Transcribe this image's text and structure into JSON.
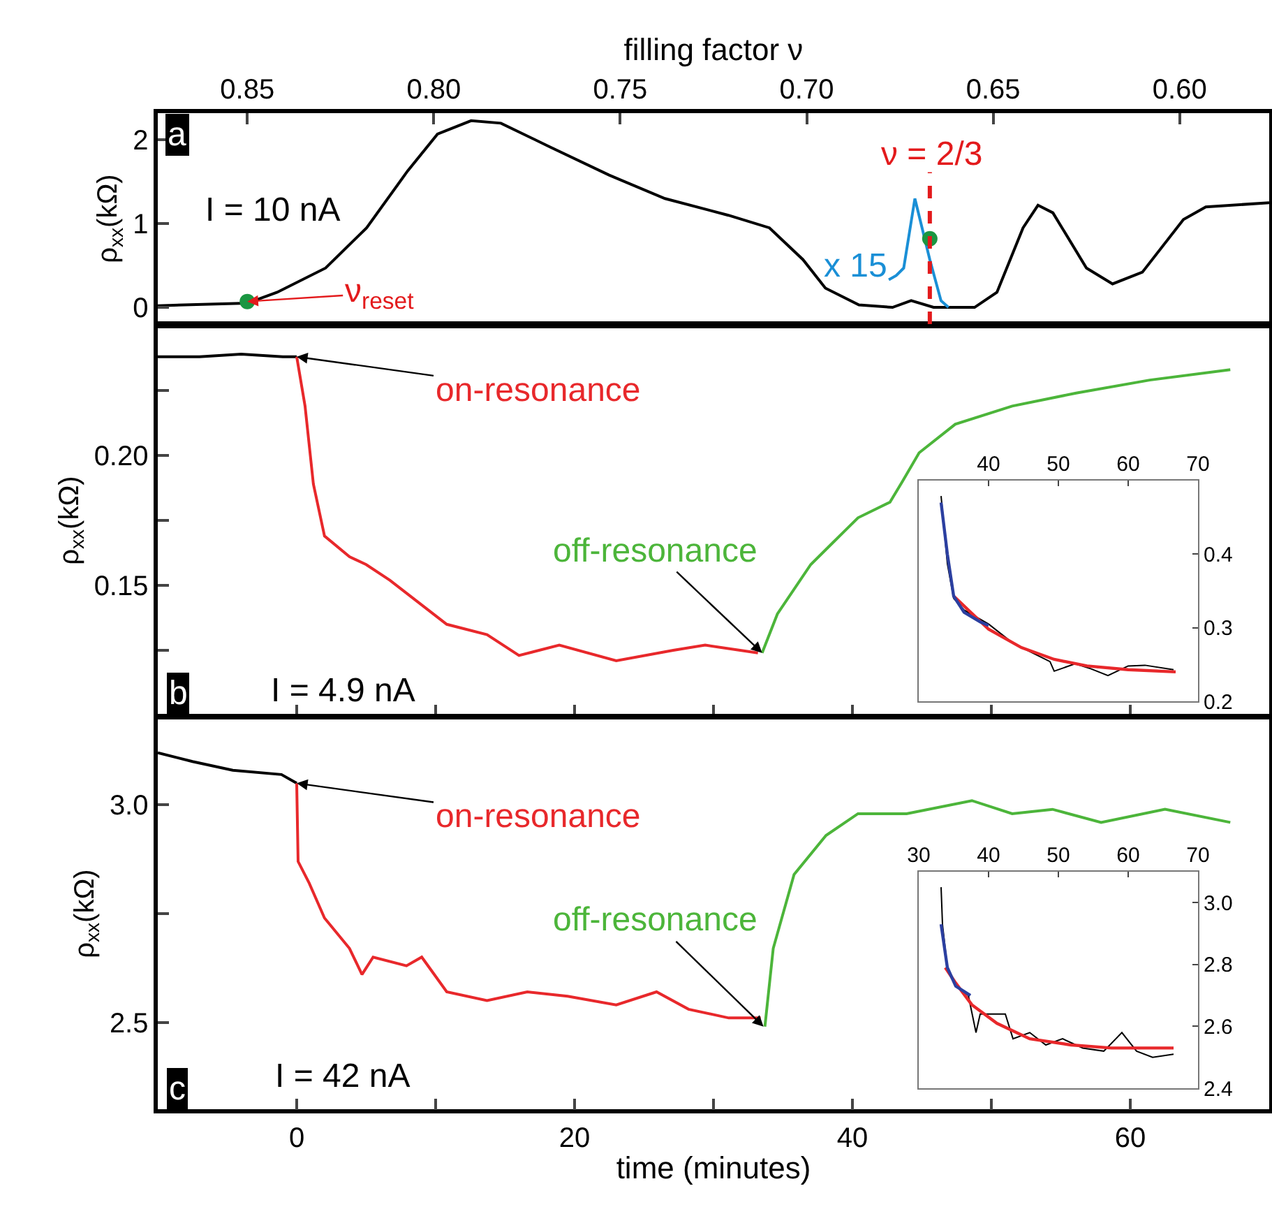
{
  "chart_data": [
    {
      "type": "line",
      "xlabel": "filling factor ν",
      "xlim": [
        0.874,
        0.576
      ],
      "xticks": [
        {
          "value": 0.85,
          "label": "0.85"
        },
        {
          "value": 0.8,
          "label": "0.80"
        },
        {
          "value": 0.75,
          "label": "0.75"
        },
        {
          "value": 0.7,
          "label": "0.70"
        },
        {
          "value": 0.65,
          "label": "0.65"
        },
        {
          "value": 0.6,
          "label": "0.60"
        }
      ],
      "ylabel": "ρ$_{xx}$(kΩ)",
      "ylim": [
        -0.2,
        2.32
      ],
      "yticks": [
        0,
        1,
        2
      ],
      "series": [
        {
          "color": "#000000",
          "x": [
            0.874,
            0.85,
            0.842,
            0.829,
            0.818,
            0.807,
            0.799,
            0.79,
            0.782,
            0.769,
            0.753,
            0.738,
            0.721,
            0.71,
            0.701,
            0.695,
            0.686,
            0.677,
            0.672,
            0.666,
            0.655,
            0.649,
            0.642,
            0.638,
            0.634,
            0.625,
            0.618,
            0.61,
            0.599,
            0.593,
            0.576
          ],
          "values": [
            0.02,
            0.05,
            0.18,
            0.47,
            0.95,
            1.63,
            2.07,
            2.23,
            2.2,
            1.92,
            1.58,
            1.3,
            1.1,
            0.95,
            0.57,
            0.23,
            0.03,
            0.0,
            0.08,
            0.0,
            0.0,
            0.18,
            0.95,
            1.22,
            1.13,
            0.47,
            0.28,
            0.42,
            1.05,
            1.2,
            1.25
          ]
        },
        {
          "color": "#1a8fd6",
          "x": [
            0.678,
            0.676,
            0.674,
            0.671,
            0.667,
            0.664,
            0.662
          ],
          "values": [
            0.33,
            0.38,
            0.47,
            1.3,
            0.57,
            0.08,
            0.0
          ]
        },
        {
          "type": "scatter",
          "marker": "circle",
          "color": "#1a9641",
          "x": [
            0.85,
            0.667
          ],
          "values": [
            0.07,
            0.82
          ]
        }
      ],
      "ref_lines": [
        {
          "axis": "x",
          "value": 0.667,
          "color": "#e31a1c",
          "line_style": "dashed"
        }
      ],
      "annotations": [
        "a",
        "I = 10 nA",
        "x 15",
        {
          "text": "ν$_{reset}$",
          "x": 0.85,
          "y": 0.07
        },
        "ν = 2/3"
      ]
    },
    {
      "type": "line",
      "xlim": [
        -10,
        70
      ],
      "xticks": [
        0,
        {
          "value": 10,
          "label": null
        },
        20,
        {
          "value": 30,
          "label": null
        },
        40,
        {
          "value": 50,
          "label": null
        },
        60
      ],
      "ylabel": "ρ$_{xx}$(kΩ)",
      "ylim": [
        0.1,
        0.25
      ],
      "yticks": [
        {
          "value": 0.125,
          "label": null
        },
        {
          "value": 0.15,
          "label": "0.15"
        },
        {
          "value": 0.175,
          "label": null
        },
        {
          "value": 0.2,
          "label": "0.20"
        },
        {
          "value": 0.225,
          "label": null
        }
      ],
      "tick_labels": "y",
      "series": [
        {
          "color": "#000000",
          "x": [
            -10,
            -7,
            -4,
            -1,
            0
          ],
          "values": [
            0.238,
            0.238,
            0.239,
            0.238,
            0.238
          ]
        },
        {
          "color": "#e8282b",
          "x": [
            0,
            0.6,
            1.2,
            2.0,
            3.8,
            5.0,
            6.7,
            10.8,
            13.7,
            16,
            18.9,
            23,
            27.1,
            29.4,
            33.2
          ],
          "values": [
            0.238,
            0.219,
            0.189,
            0.169,
            0.161,
            0.158,
            0.152,
            0.135,
            0.131,
            0.123,
            0.127,
            0.121,
            0.125,
            0.127,
            0.124
          ]
        },
        {
          "color": "#4cb53a",
          "x": [
            33.5,
            34.6,
            37,
            38.7,
            40.4,
            42.7,
            43.6,
            44.8,
            47.4,
            51.5,
            56.1,
            61.4,
            67.2
          ],
          "values": [
            0.124,
            0.139,
            0.158,
            0.167,
            0.176,
            0.182,
            0.19,
            0.201,
            0.212,
            0.219,
            0.224,
            0.229,
            0.233
          ]
        }
      ],
      "annotations": [
        "b",
        "I = 4.9 nA",
        {
          "text": "on-resonance",
          "x": 0,
          "y": 0.238
        },
        {
          "text": "off-resonance",
          "x": 33.5,
          "y": 0.124
        }
      ]
    },
    {
      "type": "line",
      "xlabel": "time (minutes)",
      "xlim": [
        -10,
        70
      ],
      "xticks": [
        0,
        {
          "value": 10,
          "label": null
        },
        20,
        {
          "value": 30,
          "label": null
        },
        40,
        {
          "value": 50,
          "label": null
        },
        60
      ],
      "ylabel": "ρ$_{xx}$(kΩ)",
      "ylim": [
        2.3,
        3.2
      ],
      "yticks": [
        {
          "value": 2.5,
          "label": "2.5"
        },
        {
          "value": 2.75,
          "label": null
        },
        {
          "value": 3.0,
          "label": "3.0"
        }
      ],
      "series": [
        {
          "color": "#000000",
          "x": [
            -10,
            -7.5,
            -4.6,
            -1.1,
            0
          ],
          "values": [
            3.12,
            3.1,
            3.08,
            3.07,
            3.05
          ]
        },
        {
          "color": "#e8282b",
          "x": [
            0,
            0.1,
            0.9,
            2,
            3.8,
            4.7,
            5.5,
            7.9,
            9,
            10.8,
            13.7,
            16.6,
            19.5,
            23,
            25.9,
            28.2,
            31.1,
            33.4
          ],
          "values": [
            3.05,
            2.87,
            2.82,
            2.74,
            2.67,
            2.61,
            2.65,
            2.63,
            2.65,
            2.57,
            2.55,
            2.57,
            2.56,
            2.54,
            2.57,
            2.53,
            2.51,
            2.51
          ]
        },
        {
          "color": "#4cb53a",
          "x": [
            33.7,
            34.3,
            35.8,
            38.1,
            40.4,
            43.9,
            48.6,
            51.5,
            54.4,
            57.9,
            62.5,
            67.2
          ],
          "values": [
            2.49,
            2.67,
            2.84,
            2.93,
            2.98,
            2.98,
            3.01,
            2.98,
            2.99,
            2.96,
            2.99,
            2.96
          ]
        }
      ],
      "annotations": [
        "c",
        "I = 42 nA",
        {
          "text": "on-resonance",
          "x": 0,
          "y": 3.05
        },
        {
          "text": "off-resonance",
          "x": 33.6,
          "y": 2.49
        }
      ]
    },
    {
      "type": "line",
      "xlim": [
        30,
        70
      ],
      "xticks": [
        40,
        50,
        60,
        70
      ],
      "ylim": [
        0.2,
        0.5
      ],
      "yticks": [
        0.2,
        0.3,
        0.4
      ],
      "series": [
        {
          "color": "#000000",
          "x": [
            33.2,
            34.1,
            35,
            36.5,
            40,
            43.5,
            48.8,
            49.4,
            52.4,
            54.7,
            57.1,
            60,
            62.4,
            66.5
          ],
          "values": [
            0.479,
            0.387,
            0.34,
            0.324,
            0.305,
            0.279,
            0.254,
            0.241,
            0.251,
            0.244,
            0.235,
            0.248,
            0.249,
            0.243
          ]
        },
        {
          "color": "#e8282b",
          "x": [
            35,
            37.1,
            40,
            44.7,
            49.4,
            54.1,
            60,
            66.8
          ],
          "values": [
            0.343,
            0.324,
            0.298,
            0.273,
            0.257,
            0.248,
            0.243,
            0.24
          ]
        },
        {
          "color": "#2b3fa0",
          "x": [
            33.2,
            34.1,
            35,
            36.5,
            38.8,
            40
          ],
          "values": [
            0.47,
            0.4,
            0.343,
            0.321,
            0.308,
            0.303
          ]
        }
      ]
    },
    {
      "type": "line",
      "xlim": [
        30,
        70
      ],
      "xticks": [
        30,
        40,
        50,
        60,
        70
      ],
      "ylim": [
        2.4,
        3.1
      ],
      "yticks": [
        {
          "value": 2.4,
          "label": "2.4"
        },
        {
          "value": 2.6,
          "label": "2.6"
        },
        {
          "value": 2.8,
          "label": "2.8"
        },
        {
          "value": 3.0,
          "label": "3.0"
        }
      ],
      "series": [
        {
          "color": "#000000",
          "x": [
            33.2,
            33.4,
            34.1,
            35.3,
            37.1,
            38.2,
            38.8,
            40.6,
            42.4,
            43.5,
            45.9,
            48.2,
            50.6,
            53.5,
            56.5,
            59.1,
            61.2,
            63.5,
            66.5
          ],
          "values": [
            3.05,
            2.93,
            2.79,
            2.73,
            2.7,
            2.58,
            2.64,
            2.64,
            2.64,
            2.56,
            2.58,
            2.54,
            2.56,
            2.53,
            2.52,
            2.58,
            2.52,
            2.5,
            2.51
          ]
        },
        {
          "color": "#e8282b",
          "x": [
            33.8,
            35.3,
            37.6,
            41.2,
            45.9,
            51.8,
            57.6,
            66.5
          ],
          "values": [
            2.79,
            2.74,
            2.67,
            2.61,
            2.56,
            2.54,
            2.53,
            2.53
          ]
        },
        {
          "color": "#2b3fa0",
          "x": [
            33.2,
            34.1,
            35.3,
            37.4
          ],
          "values": [
            2.93,
            2.79,
            2.73,
            2.7
          ]
        }
      ]
    }
  ]
}
